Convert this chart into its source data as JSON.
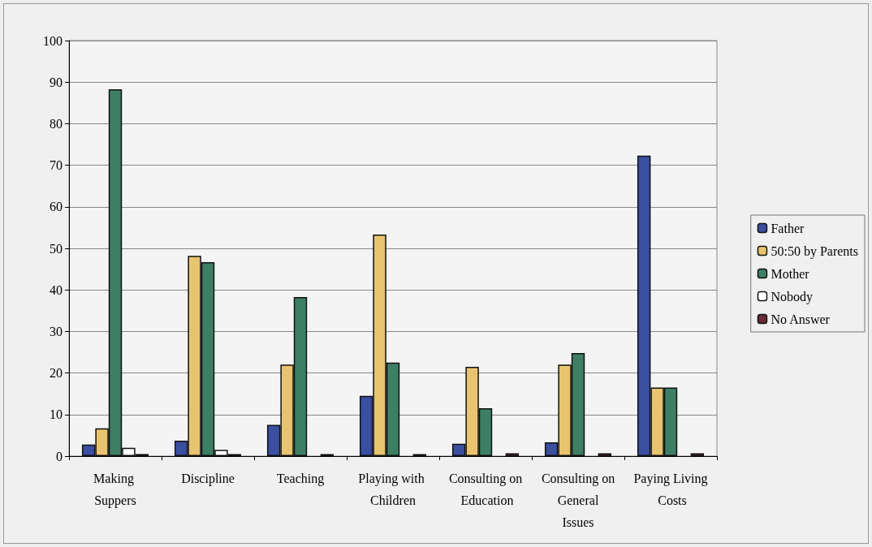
{
  "chart_data": {
    "type": "bar",
    "categories": [
      "Making Suppers",
      "Discipline",
      "Teaching",
      "Playing with Children",
      "Consulting on Education",
      "Consulting on General Issues",
      "Paying Living Costs"
    ],
    "series": [
      {
        "name": "Father",
        "color": "#3a4fa0",
        "values": [
          2.8,
          3.7,
          7.5,
          14.5,
          3,
          3.3,
          72.3
        ]
      },
      {
        "name": "50:50 by Parents",
        "color": "#e8c470",
        "values": [
          6.7,
          48.2,
          22,
          53.3,
          21.5,
          22,
          16.5
        ]
      },
      {
        "name": "Mother",
        "color": "#3d7f65",
        "values": [
          88.3,
          46.7,
          38.3,
          22.5,
          11.5,
          24.8,
          16.5
        ]
      },
      {
        "name": "Nobody",
        "color": "#ffffff",
        "values": [
          2,
          1.5,
          0,
          0,
          0,
          0,
          0
        ]
      },
      {
        "name": "No Answer",
        "color": "#6b2a35",
        "values": [
          0.5,
          0.5,
          0.5,
          0.5,
          0.7,
          0.7,
          0.7
        ]
      }
    ],
    "ylim": [
      0,
      100
    ],
    "yticks": [
      0,
      10,
      20,
      30,
      40,
      50,
      60,
      70,
      80,
      90,
      100
    ],
    "grid": "y",
    "legend": "right"
  }
}
